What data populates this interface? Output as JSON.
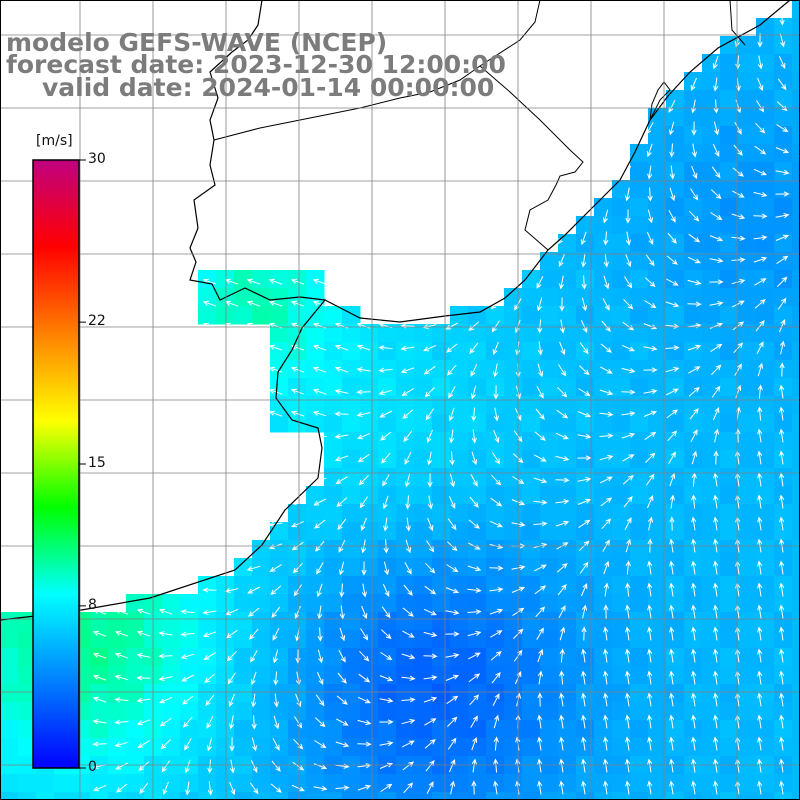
{
  "title": {
    "line1": "modelo GEFS-WAVE (NCEP)",
    "line2": "forecast date: 2023-12-30 12:00:00",
    "line3": "valid date: 2024-01-14 00:00:00"
  },
  "colorbar": {
    "unit": "[m/s]",
    "min": 0,
    "max": 30,
    "ticks": [
      {
        "label": "30",
        "value": 30
      },
      {
        "label": "22",
        "value": 22
      },
      {
        "label": "15",
        "value": 15
      },
      {
        "label": "8",
        "value": 8
      },
      {
        "label": "0",
        "value": 0
      }
    ],
    "colors": [
      "#0000ff",
      "#0080ff",
      "#00ffff",
      "#00ff00",
      "#ffff00",
      "#ff8000",
      "#ff0000",
      "#c00080"
    ]
  },
  "map": {
    "variable": "wind speed / direction",
    "land_color": "#ffffff",
    "coast_color": "#000000",
    "grid_color": "#808080",
    "arrow_color": "#ffffff"
  },
  "chart_data": {
    "type": "heatmap",
    "title": "modelo GEFS-WAVE (NCEP)",
    "colorbar_range": [
      0,
      30
    ],
    "colorbar_unit": "m/s",
    "regions": [
      {
        "name": "coastal band west (green)",
        "approx_speed": 10
      },
      {
        "name": "nearshore plateau",
        "approx_speed": 8
      },
      {
        "name": "open ocean",
        "approx_speed": 6
      },
      {
        "name": "minimum south-center",
        "approx_speed": 4
      }
    ]
  }
}
